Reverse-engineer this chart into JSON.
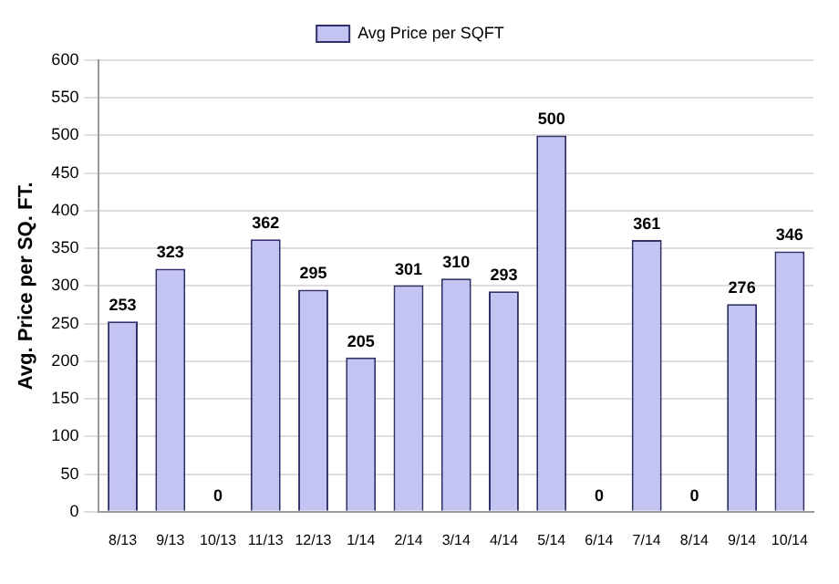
{
  "chart_data": {
    "type": "bar",
    "ylabel": "Avg. Price per SQ. FT.",
    "categories": [
      "8/13",
      "9/13",
      "10/13",
      "11/13",
      "12/13",
      "1/14",
      "2/14",
      "3/14",
      "4/14",
      "5/14",
      "6/14",
      "7/14",
      "8/14",
      "9/14",
      "10/14"
    ],
    "series": [
      {
        "name": "Avg Price per SQFT",
        "color": "#c4c4f2",
        "values": [
          253,
          323,
          0,
          362,
          295,
          205,
          301,
          310,
          293,
          500,
          0,
          361,
          0,
          276,
          346
        ]
      }
    ],
    "ylim": [
      0,
      600
    ],
    "yticks": [
      0,
      50,
      100,
      150,
      200,
      250,
      300,
      350,
      400,
      450,
      500,
      550,
      600
    ],
    "grid": "y",
    "legend": "top",
    "data_labels": true
  }
}
